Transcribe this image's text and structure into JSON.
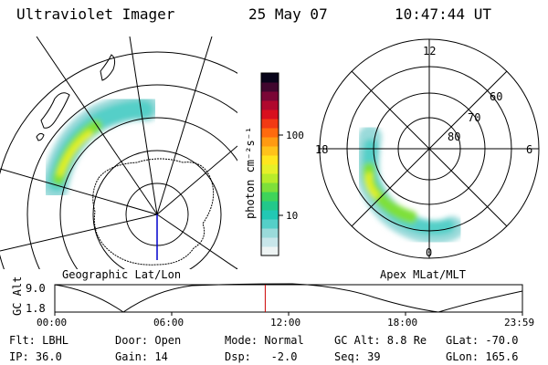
{
  "header": {
    "instrument": "Ultraviolet Imager",
    "date": "25 May 07",
    "time": "10:47:44 UT"
  },
  "colorbar": {
    "label": "photon cm⁻²s⁻¹",
    "ticks": [
      {
        "label": "100",
        "value": 100
      },
      {
        "label": "10",
        "value": 10
      }
    ],
    "colors": [
      "#eef4f4",
      "#c8e6ea",
      "#9adada",
      "#55cfc8",
      "#22c8b4",
      "#22c88a",
      "#3fd45a",
      "#7ee03a",
      "#b8ec2a",
      "#e6f028",
      "#ffe61e",
      "#ffc21a",
      "#ff9a12",
      "#ff6a0e",
      "#f23a14",
      "#d8101e",
      "#b0082e",
      "#7a0636",
      "#40062e",
      "#08041a"
    ]
  },
  "maps": {
    "left_label": "Geographic Lat/Lon",
    "right_label": "Apex MLat/MLT",
    "mlt_labels": [
      "12",
      "18",
      "6",
      "0"
    ],
    "mlat_labels": [
      "60",
      "70",
      "80"
    ]
  },
  "altitude_plot": {
    "ylabel": "GC Alt",
    "y_ticks": [
      "9.0",
      "1.8"
    ],
    "x_ticks": [
      "00:00",
      "06:00",
      "12:00",
      "18:00",
      "23:59"
    ],
    "current_time_frac": 0.45
  },
  "footer": {
    "row1": [
      "Flt: LBHL",
      "Door: Open",
      "Mode: Normal",
      "GC Alt: 8.8 Re",
      "GLat: -70.0"
    ],
    "row2": [
      "IP: 36.0",
      "Gain: 14",
      "Dsp:   -2.0",
      "Seq: 39",
      "GLon: 165.6"
    ]
  },
  "style": {
    "time_marker_color": "#cc0000",
    "pole_line_color": "#0000cc"
  }
}
